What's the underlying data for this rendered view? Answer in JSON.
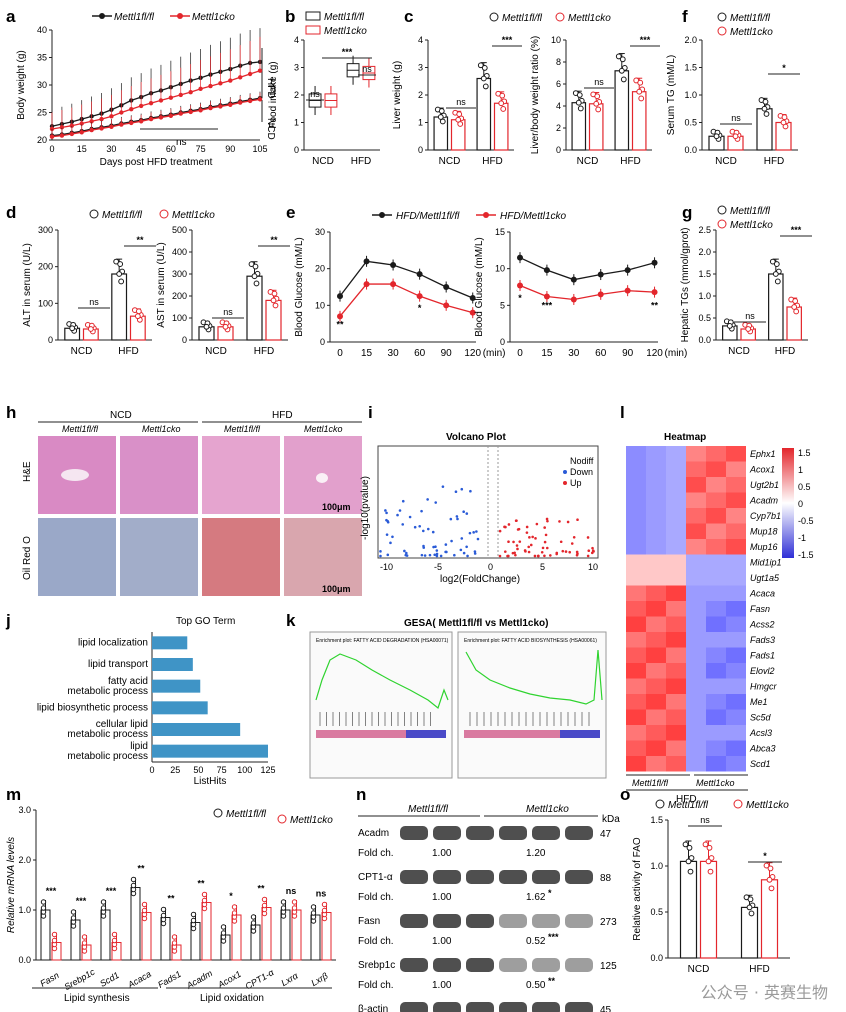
{
  "panel_labels": {
    "a": "a",
    "b": "b",
    "c": "c",
    "d": "d",
    "e": "e",
    "f": "f",
    "g": "g",
    "h": "h",
    "i": "i",
    "j": "j",
    "k": "k",
    "l": "l",
    "m": "m",
    "n": "n",
    "o": "o"
  },
  "legend": {
    "flox": "Mettl1fl/fl",
    "cko": "Mettl1cko",
    "hfd_flox": "HFD/Mettl1fl/fl",
    "hfd_cko": "HFD/Mettl1cko"
  },
  "colors": {
    "flox": "#1a1a1a",
    "cko": "#e3262c",
    "blue_bar": "#3f94c6"
  },
  "common": {
    "ncd": "NCD",
    "hfd": "HFD",
    "ns": "ns",
    "p1": "*",
    "p2": "**",
    "p3": "***"
  },
  "panel_a": {
    "xlabel": "Days post HFD treatment",
    "ylabel": "Body weight (g)",
    "hfd_side": "HFD",
    "ncd_side": "NCD",
    "sig": "ns"
  },
  "panel_b": {
    "ylabel": "Food intake (g)"
  },
  "panel_c": {
    "ylabel1": "Liver weight (g)",
    "ylabel2": "Liver/body weight ratio (%)"
  },
  "panel_f": {
    "ylabel": "Serum TG (mM/L)"
  },
  "panel_d": {
    "ylabel1": "ALT in serum (U/L)",
    "ylabel2": "AST in serum (U/L)"
  },
  "panel_e": {
    "ylabel": "Blood Glucose (mM/L)",
    "unit": "(min)"
  },
  "panel_g": {
    "ylabel": "Hepatic TGs (mmol/gprot)"
  },
  "panel_h": {
    "col1": "Mettl1fl/fl",
    "col2": "Mettl1cko",
    "col3": "Mettl1fl/fl",
    "col4": "Mettl1cko",
    "row1": "H&E",
    "row2": "Oil Red O",
    "scale": "100μm"
  },
  "panel_i": {
    "title": "Volcano Plot",
    "xlabel": "log2(FoldChange)",
    "ylabel": "-log10(pvalue)",
    "leg_nodiff": "Nodiff",
    "leg_down": "Down",
    "leg_up": "Up"
  },
  "panel_l": {
    "title": "Heatmap",
    "genes": [
      "Ephx1",
      "Acox1",
      "Ugt2b1",
      "Acadm",
      "Cyp7b1",
      "Mup18",
      "Mup16",
      "Mid1ip1",
      "Ugt1a5",
      "Acaca",
      "Fasn",
      "Acss2",
      "Fads3",
      "Fads1",
      "Elovl2",
      "Hmgcr",
      "Me1",
      "Sc5d",
      "Acsl3",
      "Abca3",
      "Scd1"
    ],
    "scale": [
      "1.5",
      "1",
      "0.5",
      "0",
      "-0.5",
      "-1",
      "-1.5"
    ],
    "xlab1": "Mettl1fl/fl",
    "xlab2": "Mettl1cko",
    "group": "HFD"
  },
  "panel_j": {
    "title": "Top GO Term",
    "xlabel": "ListHits",
    "terms": [
      "lipid localization",
      "lipid transport",
      "fatty acid metabolic process",
      "lipid biosynthetic process",
      "cellular lipid metabolic process",
      "lipid metabolic process"
    ]
  },
  "panel_k": {
    "title": "GESA( Mettl1fl/fl vs Mettl1cko)",
    "plot1": "Enrichment plot: FATTY ACID DEGRADATION (HSA00071)",
    "plot2": "Enrichment plot: FATTY ACID BIOSYNTHESIS (HSA00061)"
  },
  "panel_m": {
    "ylabel": "Relative mRNA levels",
    "genes": [
      "Fasn",
      "Srebp1c",
      "Scd1",
      "Acaca",
      "Fads1",
      "Acadm",
      "Acox1",
      "CPT1-α",
      "Lxrα",
      "Lxrβ"
    ],
    "group1": "Lipid synthesis",
    "group2": "Lipid oxidation",
    "sig": [
      "***",
      "***",
      "***",
      "**",
      "**",
      "**",
      "*",
      "**",
      "ns",
      "ns"
    ]
  },
  "panel_n": {
    "col1": "Mettl1fl/fl",
    "col2": "Mettl1cko",
    "kda": "kDa",
    "rows": [
      {
        "name": "Acadm",
        "kda": "47",
        "fold1": "1.00",
        "fold2": "1.20",
        "sig": ""
      },
      {
        "name": "CPT1-α",
        "kda": "88",
        "fold1": "1.00",
        "fold2": "1.62",
        "sig": "*"
      },
      {
        "name": "Fasn",
        "kda": "273",
        "fold1": "1.00",
        "fold2": "0.52",
        "sig": "***"
      },
      {
        "name": "Srebp1c",
        "kda": "125",
        "fold1": "1.00",
        "fold2": "0.50",
        "sig": "**"
      },
      {
        "name": "β-actin",
        "kda": "45"
      }
    ],
    "foldlab": "Fold ch."
  },
  "panel_o": {
    "ylabel": "Relative activity of FAO"
  },
  "watermark": "公众号 · 英赛生物",
  "chart_data": [
    {
      "id": "a",
      "type": "line",
      "title": "",
      "xlabel": "Days post HFD treatment",
      "ylabel": "Body weight (g)",
      "x": [
        0,
        5,
        10,
        15,
        20,
        25,
        30,
        35,
        40,
        45,
        50,
        55,
        60,
        65,
        70,
        75,
        80,
        85,
        90,
        95,
        100,
        105
      ],
      "ylim": [
        20,
        40
      ],
      "series": [
        {
          "name": "HFD Mettl1fl/fl",
          "values": [
            22.5,
            22.9,
            23.3,
            23.8,
            24.3,
            24.8,
            25.5,
            26.3,
            27.2,
            27.8,
            28.5,
            29.0,
            29.6,
            30.2,
            30.8,
            31.3,
            31.9,
            32.4,
            32.9,
            33.5,
            34.0,
            34.2
          ]
        },
        {
          "name": "HFD Mettl1cko",
          "values": [
            22.0,
            22.3,
            22.6,
            23.0,
            23.4,
            23.8,
            24.3,
            25.0,
            25.6,
            26.2,
            26.7,
            27.2,
            27.7,
            28.2,
            28.7,
            29.3,
            29.8,
            30.3,
            30.8,
            31.4,
            32.0,
            32.6
          ]
        },
        {
          "name": "NCD Mettl1fl/fl",
          "values": [
            20.8,
            21.0,
            21.3,
            21.6,
            22.0,
            22.3,
            22.6,
            23.0,
            23.3,
            23.6,
            24.0,
            24.3,
            24.6,
            25.0,
            25.3,
            25.6,
            26.0,
            26.3,
            26.6,
            27.0,
            27.3,
            27.6
          ]
        },
        {
          "name": "NCD Mettl1cko",
          "values": [
            20.6,
            20.8,
            21.1,
            21.4,
            21.8,
            22.1,
            22.4,
            22.8,
            23.1,
            23.4,
            23.8,
            24.1,
            24.4,
            24.8,
            25.1,
            25.4,
            25.8,
            26.1,
            26.4,
            26.8,
            27.1,
            27.4
          ]
        }
      ]
    },
    {
      "id": "b",
      "type": "bar",
      "ylabel": "Food intake (g)",
      "categories": [
        "NCD",
        "HFD"
      ],
      "ylim": [
        0,
        4
      ],
      "series": [
        {
          "name": "Mettl1fl/fl",
          "values": [
            1.8,
            2.9
          ]
        },
        {
          "name": "Mettl1cko",
          "values": [
            1.8,
            2.8
          ]
        }
      ]
    },
    {
      "id": "c1",
      "type": "bar",
      "ylabel": "Liver weight (g)",
      "categories": [
        "NCD",
        "HFD"
      ],
      "ylim": [
        0,
        4
      ],
      "series": [
        {
          "name": "Mettl1fl/fl",
          "values": [
            1.2,
            2.6
          ]
        },
        {
          "name": "Mettl1cko",
          "values": [
            1.1,
            1.7
          ]
        }
      ]
    },
    {
      "id": "c2",
      "type": "bar",
      "ylabel": "Liver/body weight ratio (%)",
      "categories": [
        "NCD",
        "HFD"
      ],
      "ylim": [
        0,
        10
      ],
      "series": [
        {
          "name": "Mettl1fl/fl",
          "values": [
            4.3,
            7.2
          ]
        },
        {
          "name": "Mettl1cko",
          "values": [
            4.2,
            5.3
          ]
        }
      ]
    },
    {
      "id": "f",
      "type": "bar",
      "ylabel": "Serum TG (mM/L)",
      "categories": [
        "NCD",
        "HFD"
      ],
      "ylim": [
        0,
        2.0
      ],
      "series": [
        {
          "name": "Mettl1fl/fl",
          "values": [
            0.25,
            0.75
          ]
        },
        {
          "name": "Mettl1cko",
          "values": [
            0.25,
            0.5
          ]
        }
      ]
    },
    {
      "id": "d1",
      "type": "bar",
      "ylabel": "ALT in serum (U/L)",
      "categories": [
        "NCD",
        "HFD"
      ],
      "ylim": [
        0,
        300
      ],
      "series": [
        {
          "name": "Mettl1fl/fl",
          "values": [
            32,
            180
          ]
        },
        {
          "name": "Mettl1cko",
          "values": [
            30,
            65
          ]
        }
      ]
    },
    {
      "id": "d2",
      "type": "bar",
      "ylabel": "AST in serum (U/L)",
      "categories": [
        "NCD",
        "HFD"
      ],
      "ylim": [
        0,
        500
      ],
      "series": [
        {
          "name": "Mettl1fl/fl",
          "values": [
            60,
            290
          ]
        },
        {
          "name": "Mettl1cko",
          "values": [
            60,
            180
          ]
        }
      ]
    },
    {
      "id": "e1",
      "type": "line",
      "ylabel": "Blood Glucose (mM/L)",
      "x": [
        0,
        15,
        30,
        60,
        90,
        120
      ],
      "ylim": [
        0,
        30
      ],
      "series": [
        {
          "name": "HFD/Mettl1fl/fl",
          "values": [
            12.5,
            22,
            21,
            18.5,
            15,
            12
          ]
        },
        {
          "name": "HFD/Mettl1cko",
          "values": [
            7,
            15.8,
            15.8,
            12.5,
            10,
            8
          ]
        }
      ]
    },
    {
      "id": "e2",
      "type": "line",
      "ylabel": "Blood Glucose (mM/L)",
      "x": [
        0,
        15,
        30,
        60,
        90,
        120
      ],
      "ylim": [
        0,
        15
      ],
      "series": [
        {
          "name": "HFD/Mettl1fl/fl",
          "values": [
            11.5,
            9.8,
            8.5,
            9.2,
            9.8,
            10.8
          ]
        },
        {
          "name": "HFD/Mettl1cko",
          "values": [
            7.7,
            6.2,
            5.8,
            6.5,
            7,
            6.8
          ]
        }
      ]
    },
    {
      "id": "g",
      "type": "bar",
      "ylabel": "Hepatic TGs (mmol/gprot)",
      "categories": [
        "NCD",
        "HFD"
      ],
      "ylim": [
        0,
        2.5
      ],
      "series": [
        {
          "name": "Mettl1fl/fl",
          "values": [
            0.32,
            1.5
          ]
        },
        {
          "name": "Mettl1cko",
          "values": [
            0.25,
            0.75
          ]
        }
      ]
    },
    {
      "id": "j",
      "type": "bar",
      "title": "Top GO Term",
      "xlabel": "ListHits",
      "orientation": "horizontal",
      "categories": [
        "lipid localization",
        "lipid transport",
        "fatty acid metabolic process",
        "lipid biosynthetic process",
        "cellular lipid metabolic process",
        "lipid metabolic process"
      ],
      "values": [
        38,
        44,
        52,
        60,
        95,
        125
      ],
      "xlim": [
        0,
        125
      ]
    },
    {
      "id": "m",
      "type": "bar",
      "ylabel": "Relative mRNA levels",
      "categories": [
        "Fasn",
        "Srebp1c",
        "Scd1",
        "Acaca",
        "Fads1",
        "Acadm",
        "Acox1",
        "CPT1-α",
        "Lxrα",
        "Lxrβ"
      ],
      "ylim": [
        0,
        3.0
      ],
      "series": [
        {
          "name": "Mettl1fl/fl",
          "values": [
            1.0,
            0.8,
            1.0,
            1.45,
            0.85,
            0.75,
            0.5,
            0.7,
            1.0,
            0.9
          ]
        },
        {
          "name": "Mettl1cko",
          "values": [
            0.35,
            0.3,
            0.35,
            0.95,
            0.3,
            1.15,
            0.9,
            1.05,
            1.0,
            0.95
          ]
        }
      ]
    },
    {
      "id": "o",
      "type": "bar",
      "ylabel": "Relative activity of FAO",
      "categories": [
        "NCD",
        "HFD"
      ],
      "ylim": [
        0,
        1.5
      ],
      "series": [
        {
          "name": "Mettl1fl/fl",
          "values": [
            1.05,
            0.55
          ]
        },
        {
          "name": "Mettl1cko",
          "values": [
            1.05,
            0.85
          ]
        }
      ]
    }
  ]
}
